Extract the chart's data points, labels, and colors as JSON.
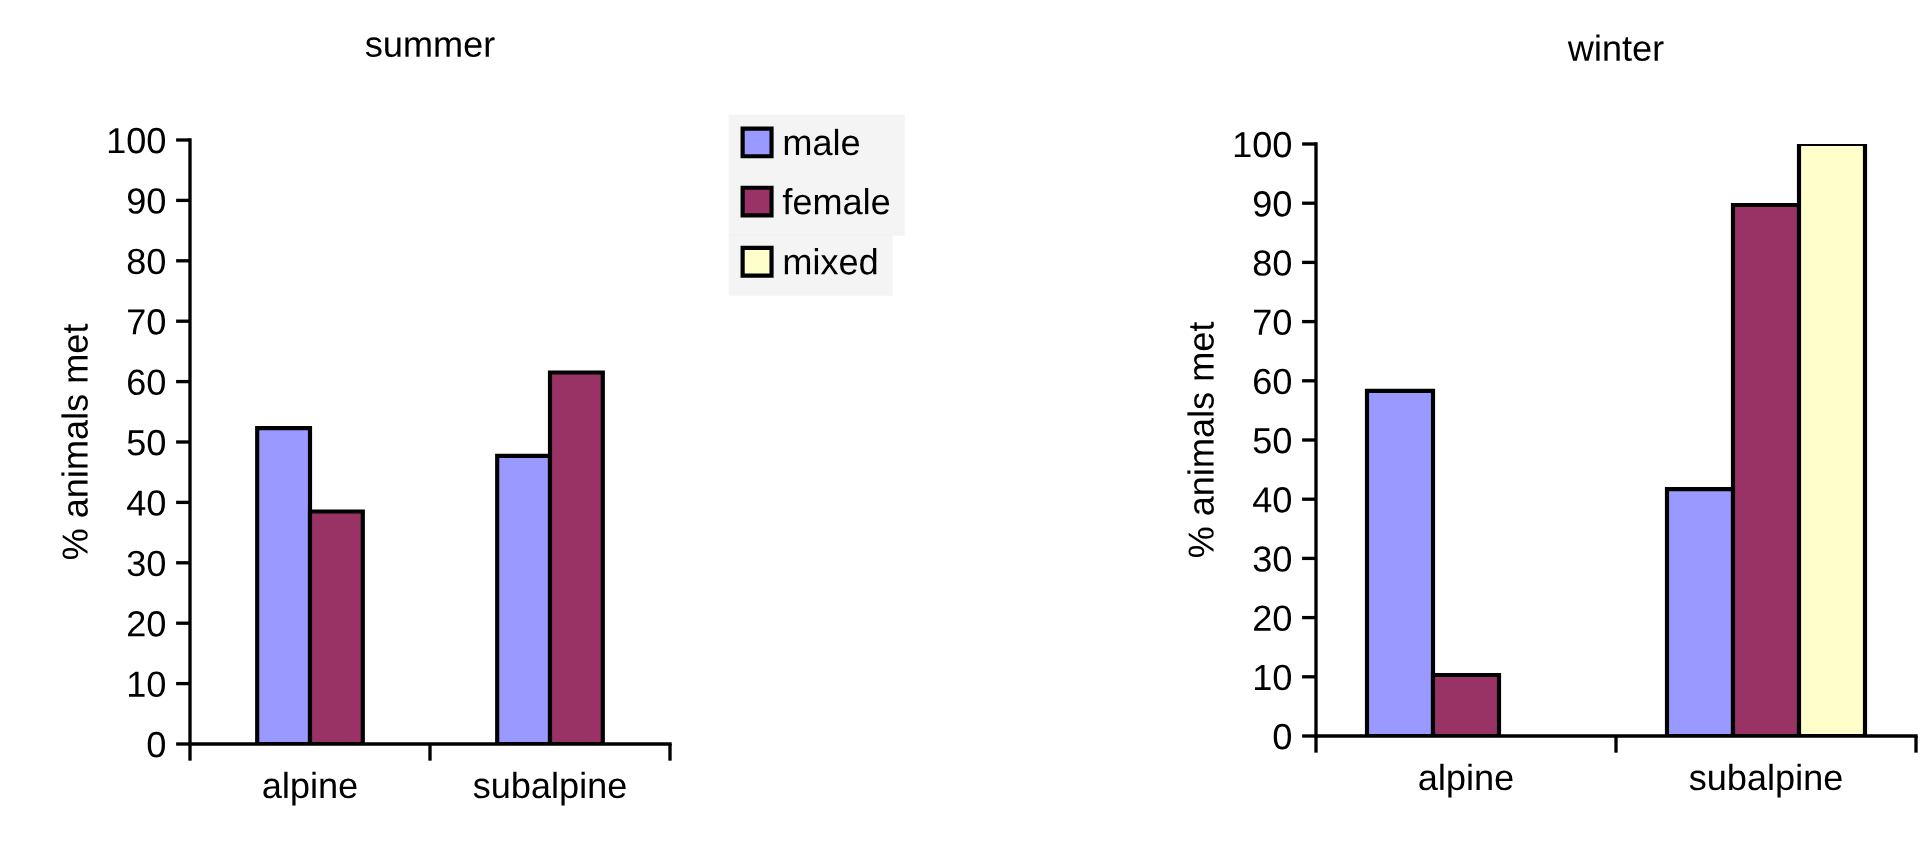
{
  "chart_data": [
    {
      "type": "bar",
      "title": "summer",
      "ylabel": "% animals met",
      "categories": [
        "alpine",
        "subalpine"
      ],
      "ylim": [
        0,
        100
      ],
      "yticks": [
        0,
        10,
        20,
        30,
        40,
        50,
        60,
        70,
        80,
        90,
        100
      ],
      "grid": false,
      "legend": "right",
      "series": [
        {
          "name": "male",
          "color": "#9999ff",
          "values": [
            52.3,
            47.7
          ]
        },
        {
          "name": "female",
          "color": "#993366",
          "values": [
            38.5,
            61.5
          ]
        }
      ]
    },
    {
      "type": "bar",
      "title": "winter",
      "ylabel": "% animals met",
      "categories": [
        "alpine",
        "subalpine"
      ],
      "ylim": [
        0,
        100
      ],
      "yticks": [
        0,
        10,
        20,
        30,
        40,
        50,
        60,
        70,
        80,
        90,
        100
      ],
      "grid": false,
      "legend": "left",
      "series": [
        {
          "name": "male",
          "color": "#9999ff",
          "values": [
            58.3,
            41.7
          ]
        },
        {
          "name": "female",
          "color": "#993366",
          "values": [
            10.3,
            89.7
          ]
        },
        {
          "name": "mixed",
          "color": "#ffffcc",
          "values": [
            null,
            100
          ]
        }
      ]
    }
  ]
}
